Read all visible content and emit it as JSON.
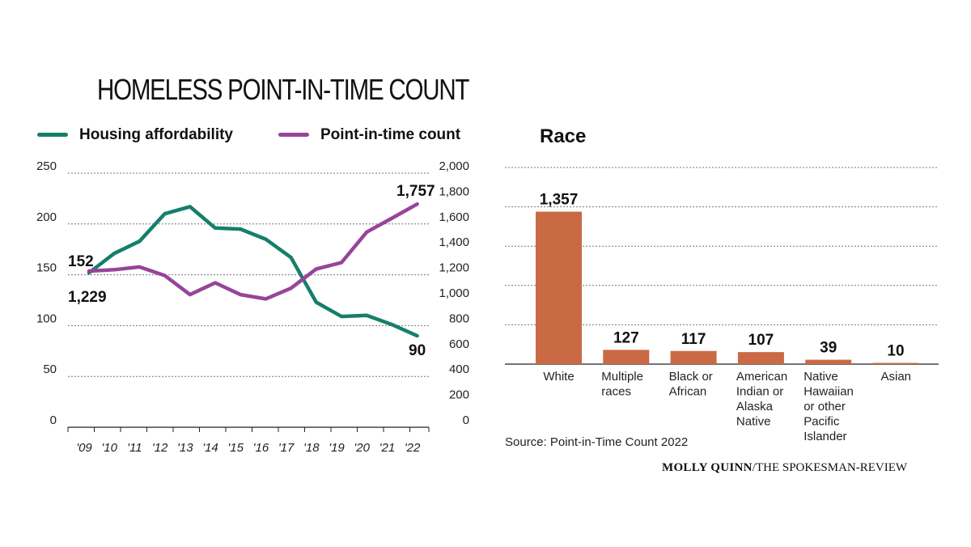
{
  "page": {
    "title": "HOMELESS POINT-IN-TIME COUNT",
    "source": "Source: Point-in-Time Count 2022",
    "credit_name": "MOLLY QUINN",
    "credit_org": "/THE SPOKESMAN-REVIEW"
  },
  "colors": {
    "affordability": "#167f6c",
    "pit": "#97449a",
    "bar": "#c96a45",
    "grid": "#777777"
  },
  "chart_data": [
    {
      "type": "line",
      "title": "HOMELESS POINT-IN-TIME COUNT",
      "x": [
        "'09",
        "'10",
        "'11",
        "'12",
        "'13",
        "'14",
        "'15",
        "'16",
        "'17",
        "'18",
        "'19",
        "'20",
        "'21",
        "'22"
      ],
      "y_left": {
        "range": [
          0,
          250
        ],
        "ticks": [
          "0",
          "50",
          "100",
          "150",
          "200",
          "250"
        ]
      },
      "y_right": {
        "range": [
          0,
          2000
        ],
        "ticks": [
          "0",
          "200",
          "400",
          "600",
          "800",
          "1,000",
          "1,200",
          "1,400",
          "1,600",
          "1,800",
          "2,000"
        ]
      },
      "series": [
        {
          "name": "Housing affordability",
          "axis": "left",
          "values": [
            152,
            171,
            183,
            210,
            217,
            196,
            195,
            185,
            167,
            123,
            109,
            110,
            101,
            90
          ]
        },
        {
          "name": "Point-in-time count",
          "axis": "right",
          "values": [
            1229,
            1240,
            1262,
            1194,
            1044,
            1137,
            1044,
            1010,
            1094,
            1246,
            1296,
            1536,
            1646,
            1757
          ]
        }
      ],
      "annotations": [
        {
          "series": "Housing affordability",
          "point": 0,
          "text": "152"
        },
        {
          "series": "Point-in-time count",
          "point": 0,
          "text": "1,229"
        },
        {
          "series": "Point-in-time count",
          "point": 13,
          "text": "1,757"
        },
        {
          "series": "Housing affordability",
          "point": 13,
          "text": "90"
        }
      ],
      "grid": true,
      "legend": "top"
    },
    {
      "type": "bar",
      "title": "Race",
      "categories": [
        "White",
        "Multiple races",
        "Black or African",
        "American Indian or Alaska Native",
        "Native Hawaiian or other Pacific Islander",
        "Asian"
      ],
      "category_lines": [
        [
          "White"
        ],
        [
          "Multiple",
          "races"
        ],
        [
          "Black or",
          "African"
        ],
        [
          "American",
          "Indian or",
          "Alaska",
          "Native"
        ],
        [
          "Native",
          "Hawaiian",
          "or other",
          "Pacific",
          "Islander"
        ],
        [
          "Asian"
        ]
      ],
      "values": [
        1357,
        127,
        117,
        107,
        39,
        10
      ],
      "value_labels": [
        "1,357",
        "127",
        "117",
        "107",
        "39",
        "10"
      ],
      "ylim": [
        0,
        1750
      ],
      "grid": true
    }
  ]
}
